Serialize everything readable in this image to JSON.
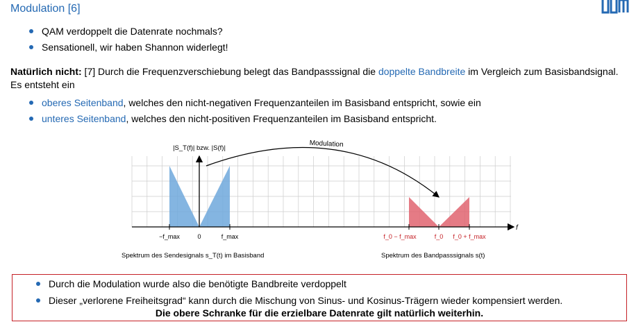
{
  "slide": {
    "title": "Modulation [6]"
  },
  "intro_bullets": [
    "QAM verdoppelt die Datenrate nochmals?",
    "Sensationell, wir haben Shannon widerlegt!"
  ],
  "paragraph": {
    "lead": "Natürlich nicht:",
    "text_before": " [7] Durch die Frequenzverschiebung belegt das Bandpasssignal die ",
    "highlight": "doppelte Bandbreite",
    "text_after": " im Vergleich zum Basisbandsignal. Es entsteht ein"
  },
  "sideband_bullets": [
    {
      "highlight": "oberes Seitenband",
      "rest": ", welches den nicht-negativen Frequenzanteilen im Basisband entspricht, sowie ein"
    },
    {
      "highlight": "unteres Seitenband",
      "rest": ", welches den nicht-positiven Frequenzanteilen im Basisband entspricht."
    }
  ],
  "figure": {
    "y_axis_label": "|S_T(f)| bzw. |S(f)|",
    "x_axis_label": "f",
    "arrow_label": "Modulation",
    "baseband_ticks": [
      "−f_max",
      "0",
      "f_max"
    ],
    "bandpass_ticks": [
      "f_0 − f_max",
      "f_0",
      "f_0 + f_max"
    ],
    "baseband_caption": "Spektrum des Sendesignals s_T(t) im Basisband",
    "bandpass_caption": "Spektrum des Bandpasssignals s(t)",
    "colors": {
      "baseband": "#6fa8dc",
      "bandpass": "#e06470",
      "grid": "#cccccc"
    }
  },
  "conclusion": {
    "bullets": [
      "Durch die Modulation wurde also die benötigte Bandbreite verdoppelt",
      "Dieser „verlorene Freiheitsgrad“ kann durch die Mischung von Sinus- und Kosinus-Trägern wieder kompensiert werden."
    ],
    "strong": "Die obere Schranke für die erzielbare Datenrate gilt natürlich weiterhin."
  }
}
